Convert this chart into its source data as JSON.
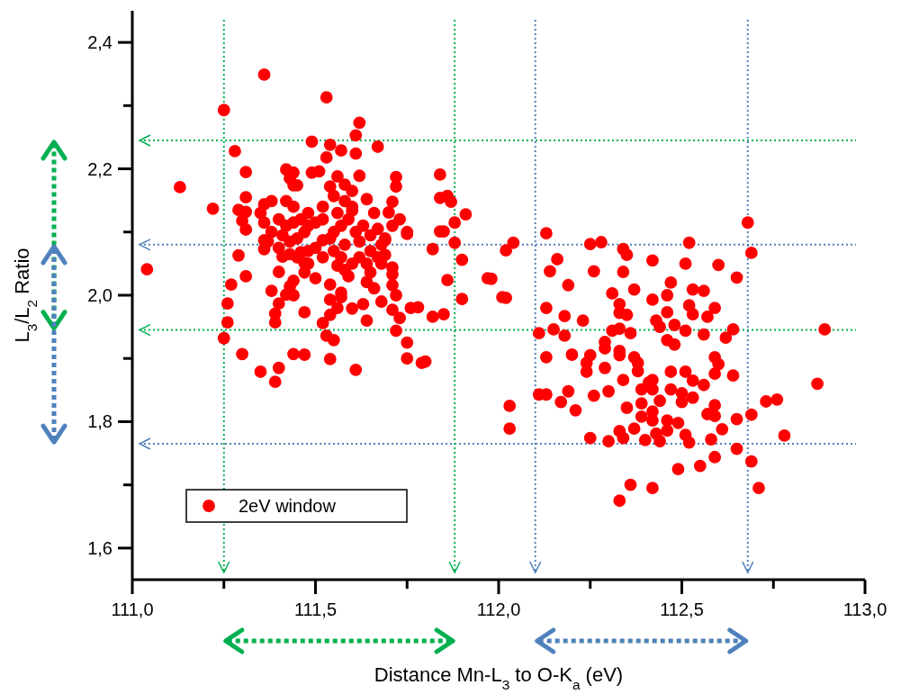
{
  "chart_data": {
    "type": "scatter",
    "xlabel": "Distance Mn-L$_{3}$ to O-K$_{a}$ (eV)",
    "ylabel": "L$_{3}$/L$_{2}$ Ratio",
    "xlim": [
      111.0,
      113.0
    ],
    "ylim": [
      1.55,
      2.45
    ],
    "xticks": [
      {
        "value": 111.0,
        "label": "111,0"
      },
      {
        "value": 111.25,
        "label": null
      },
      {
        "value": 111.5,
        "label": "111,5"
      },
      {
        "value": 111.75,
        "label": null
      },
      {
        "value": 112.0,
        "label": "112,0"
      },
      {
        "value": 112.25,
        "label": null
      },
      {
        "value": 112.5,
        "label": "112,5"
      },
      {
        "value": 112.75,
        "label": null
      },
      {
        "value": 113.0,
        "label": "113,0"
      }
    ],
    "yticks": [
      {
        "value": 1.6,
        "label": "1,6"
      },
      {
        "value": 1.7,
        "label": null
      },
      {
        "value": 1.8,
        "label": "1,8"
      },
      {
        "value": 1.9,
        "label": null
      },
      {
        "value": 2.0,
        "label": "2,0"
      },
      {
        "value": 2.1,
        "label": null
      },
      {
        "value": 2.2,
        "label": "2,2"
      },
      {
        "value": 2.3,
        "label": null
      },
      {
        "value": 2.4,
        "label": "2,4"
      }
    ],
    "grid": false,
    "legend": "bottom left",
    "marker": "circle",
    "ref_lines": [
      {
        "axis": "y",
        "value": 2.245,
        "color": "#00b050",
        "line_style": "dotted"
      },
      {
        "axis": "y",
        "value": 1.945,
        "color": "#00b050",
        "line_style": "dotted"
      },
      {
        "axis": "y",
        "value": 2.08,
        "color": "#4f81bd",
        "line_style": "dotted"
      },
      {
        "axis": "y",
        "value": 1.765,
        "color": "#4f81bd",
        "line_style": "dotted"
      },
      {
        "axis": "x",
        "value": 111.25,
        "color": "#00b050",
        "line_style": "dotted"
      },
      {
        "axis": "x",
        "value": 111.88,
        "color": "#00b050",
        "line_style": "dotted"
      },
      {
        "axis": "x",
        "value": 112.1,
        "color": "#4f81bd",
        "line_style": "dotted"
      },
      {
        "axis": "x",
        "value": 112.68,
        "color": "#4f81bd",
        "line_style": "dotted"
      }
    ],
    "series": [
      {
        "name": "2eV window",
        "color": "#ff0000",
        "x": [
          111.36,
          111.53,
          111.25,
          111.62,
          111.61,
          111.49,
          111.54,
          111.57,
          111.61,
          111.28,
          111.67,
          111.53,
          111.13,
          111.31,
          111.42,
          111.44,
          111.49,
          111.51,
          111.56,
          111.62,
          111.72,
          111.72,
          111.84,
          111.22,
          111.31,
          111.43,
          111.44,
          111.45,
          111.42,
          111.36,
          111.38,
          111.54,
          111.55,
          111.58,
          111.64,
          111.71,
          111.7,
          111.84,
          111.86,
          111.87,
          111.91,
          111.88,
          111.29,
          111.31,
          111.3,
          111.75,
          111.84,
          111.6,
          111.31,
          111.36,
          111.36,
          111.29,
          111.31,
          111.27,
          111.04,
          111.4,
          111.38,
          111.26,
          111.26,
          111.25,
          111.3,
          111.35,
          111.4,
          111.39,
          111.44,
          111.47,
          111.39,
          111.39,
          111.4,
          111.42,
          111.43,
          111.44,
          111.41,
          111.43,
          111.46,
          111.47,
          111.48,
          111.47,
          111.44,
          111.47,
          111.5,
          111.54,
          111.56,
          111.58,
          111.59,
          111.57,
          111.57,
          111.54,
          111.56,
          111.54,
          111.52,
          111.53,
          111.55,
          111.54,
          111.61,
          111.6,
          111.63,
          111.64,
          111.64,
          111.64,
          111.65,
          111.66,
          111.68,
          111.68,
          111.69,
          111.71,
          111.71,
          111.71,
          111.72,
          111.71,
          111.73,
          111.72,
          111.75,
          111.75,
          111.79,
          111.8,
          111.76,
          111.78,
          111.82,
          111.85,
          111.82,
          111.75,
          111.86,
          111.9,
          111.9,
          111.88,
          111.85,
          111.97,
          112.01,
          111.69,
          111.52,
          111.4,
          111.42,
          111.44,
          111.46,
          111.48,
          111.5,
          111.52,
          111.47,
          111.45,
          111.43,
          111.41,
          111.38,
          111.36,
          111.55,
          111.57,
          111.59,
          111.61,
          111.63,
          111.65,
          111.67,
          111.69,
          111.71,
          111.73,
          111.62,
          111.58,
          111.55,
          111.52,
          111.5,
          111.48,
          111.65,
          111.67,
          111.62,
          111.6,
          111.57,
          111.54,
          111.66,
          111.6,
          111.56,
          111.52,
          111.48,
          111.44,
          111.68,
          111.4,
          111.37,
          111.45,
          111.35,
          111.6,
          111.58,
          112.68,
          112.69,
          112.04,
          112.02,
          111.98,
          112.02,
          112.13,
          112.16,
          112.14,
          112.19,
          112.25,
          112.28,
          112.34,
          112.35,
          112.26,
          112.34,
          112.42,
          112.52,
          112.51,
          112.6,
          112.65,
          112.47,
          112.31,
          112.37,
          112.42,
          112.46,
          112.53,
          112.56,
          112.52,
          112.59,
          112.33,
          112.33,
          112.35,
          112.53,
          112.57,
          112.18,
          112.23,
          112.15,
          112.18,
          112.43,
          112.46,
          112.44,
          112.48,
          112.51,
          112.31,
          112.33,
          112.36,
          112.29,
          112.29,
          112.33,
          112.46,
          112.48,
          112.56,
          112.62,
          112.64,
          112.89,
          112.13,
          112.2,
          112.25,
          112.24,
          112.24,
          112.29,
          112.33,
          112.37,
          112.38,
          112.38,
          112.34,
          112.42,
          112.42,
          112.44,
          112.39,
          112.35,
          112.42,
          112.39,
          112.42,
          112.37,
          112.47,
          112.51,
          112.53,
          112.56,
          112.47,
          112.5,
          112.53,
          112.5,
          112.46,
          112.49,
          112.46,
          112.43,
          112.4,
          112.44,
          112.51,
          112.52,
          112.33,
          112.34,
          112.3,
          112.25,
          112.59,
          112.6,
          112.59,
          112.64,
          112.59,
          112.57,
          112.59,
          112.65,
          112.61,
          112.58,
          112.65,
          112.59,
          112.55,
          112.49,
          112.69,
          112.71,
          112.69,
          112.73,
          112.76,
          112.78,
          112.87,
          112.36,
          112.42,
          112.33,
          112.03,
          112.03,
          112.11,
          112.13,
          112.19,
          112.17,
          112.21,
          112.26,
          112.3,
          112.39,
          112.41,
          112.11,
          112.13
        ],
        "values": [
          2.349,
          2.313,
          2.293,
          2.273,
          2.253,
          2.243,
          2.238,
          2.229,
          2.224,
          2.228,
          2.235,
          2.218,
          2.171,
          2.195,
          2.199,
          2.194,
          2.194,
          2.196,
          2.188,
          2.189,
          2.187,
          2.172,
          2.191,
          2.137,
          2.155,
          2.185,
          2.174,
          2.174,
          2.149,
          2.144,
          2.149,
          2.172,
          2.157,
          2.149,
          2.152,
          2.148,
          2.131,
          2.154,
          2.157,
          2.148,
          2.128,
          2.115,
          2.135,
          2.132,
          2.118,
          2.1,
          2.101,
          2.134,
          2.104,
          2.087,
          2.073,
          2.063,
          2.03,
          2.017,
          2.041,
          2.037,
          2.007,
          1.987,
          1.957,
          1.932,
          1.907,
          1.879,
          1.885,
          1.863,
          1.907,
          1.906,
          1.971,
          1.957,
          1.987,
          2.001,
          2.014,
          2.0,
          2.061,
          2.065,
          2.068,
          2.051,
          2.05,
          2.036,
          2.023,
          1.973,
          2.027,
          2.017,
          2.047,
          2.04,
          2.03,
          2.004,
          1.997,
          1.993,
          1.98,
          1.969,
          1.956,
          1.936,
          1.929,
          1.899,
          1.882,
          1.979,
          1.986,
          1.96,
          2.05,
          2.021,
          2.036,
          2.011,
          1.99,
          2.05,
          2.064,
          2.044,
          2.033,
          2.016,
          2.0,
          1.977,
          1.964,
          1.944,
          1.925,
          1.9,
          1.893,
          1.895,
          1.98,
          1.981,
          1.966,
          1.97,
          2.073,
          2.097,
          2.024,
          1.994,
          2.056,
          2.083,
          2.101,
          2.027,
          1.997,
          2.087,
          2.087,
          2.12,
          2.11,
          2.115,
          2.12,
          2.11,
          2.115,
          2.12,
          2.1,
          2.09,
          2.085,
          2.095,
          2.1,
          2.115,
          2.1,
          2.11,
          2.12,
          2.1,
          2.11,
          2.095,
          2.105,
          2.09,
          2.11,
          2.12,
          2.085,
          2.08,
          2.07,
          2.06,
          2.075,
          2.07,
          2.07,
          2.06,
          2.06,
          2.05,
          2.06,
          2.09,
          2.13,
          2.14,
          2.13,
          2.14,
          2.13,
          2.14,
          2.08,
          2.075,
          2.085,
          2.06,
          2.13,
          2.165,
          2.175,
          2.115,
          2.067,
          2.083,
          2.071,
          2.026,
          1.996,
          2.098,
          2.057,
          2.038,
          2.016,
          2.081,
          2.084,
          2.073,
          2.064,
          2.038,
          2.037,
          2.055,
          2.083,
          2.05,
          2.048,
          2.028,
          2.02,
          2.003,
          2.009,
          1.993,
          2.0,
          2.009,
          2.007,
          1.984,
          1.98,
          1.986,
          1.972,
          1.969,
          1.97,
          1.966,
          1.967,
          1.96,
          1.946,
          1.936,
          1.96,
          1.973,
          1.95,
          1.953,
          1.944,
          1.944,
          1.947,
          1.94,
          1.926,
          1.916,
          1.912,
          1.929,
          1.922,
          1.938,
          1.933,
          1.946,
          1.946,
          1.902,
          1.906,
          1.905,
          1.893,
          1.879,
          1.885,
          1.905,
          1.902,
          1.893,
          1.88,
          1.866,
          1.866,
          1.851,
          1.833,
          1.829,
          1.822,
          1.816,
          1.808,
          1.802,
          1.789,
          1.879,
          1.879,
          1.865,
          1.858,
          1.851,
          1.845,
          1.838,
          1.831,
          1.802,
          1.798,
          1.786,
          1.781,
          1.771,
          1.769,
          1.779,
          1.767,
          1.785,
          1.774,
          1.769,
          1.774,
          1.902,
          1.891,
          1.876,
          1.873,
          1.826,
          1.812,
          1.809,
          1.804,
          1.788,
          1.772,
          1.757,
          1.744,
          1.73,
          1.725,
          1.737,
          1.695,
          1.811,
          1.832,
          1.835,
          1.778,
          1.86,
          1.7,
          1.695,
          1.675,
          1.825,
          1.789,
          1.843,
          1.843,
          1.848,
          1.831,
          1.818,
          1.841,
          1.848,
          1.851,
          1.862,
          1.94,
          1.98
        ]
      }
    ]
  }
}
